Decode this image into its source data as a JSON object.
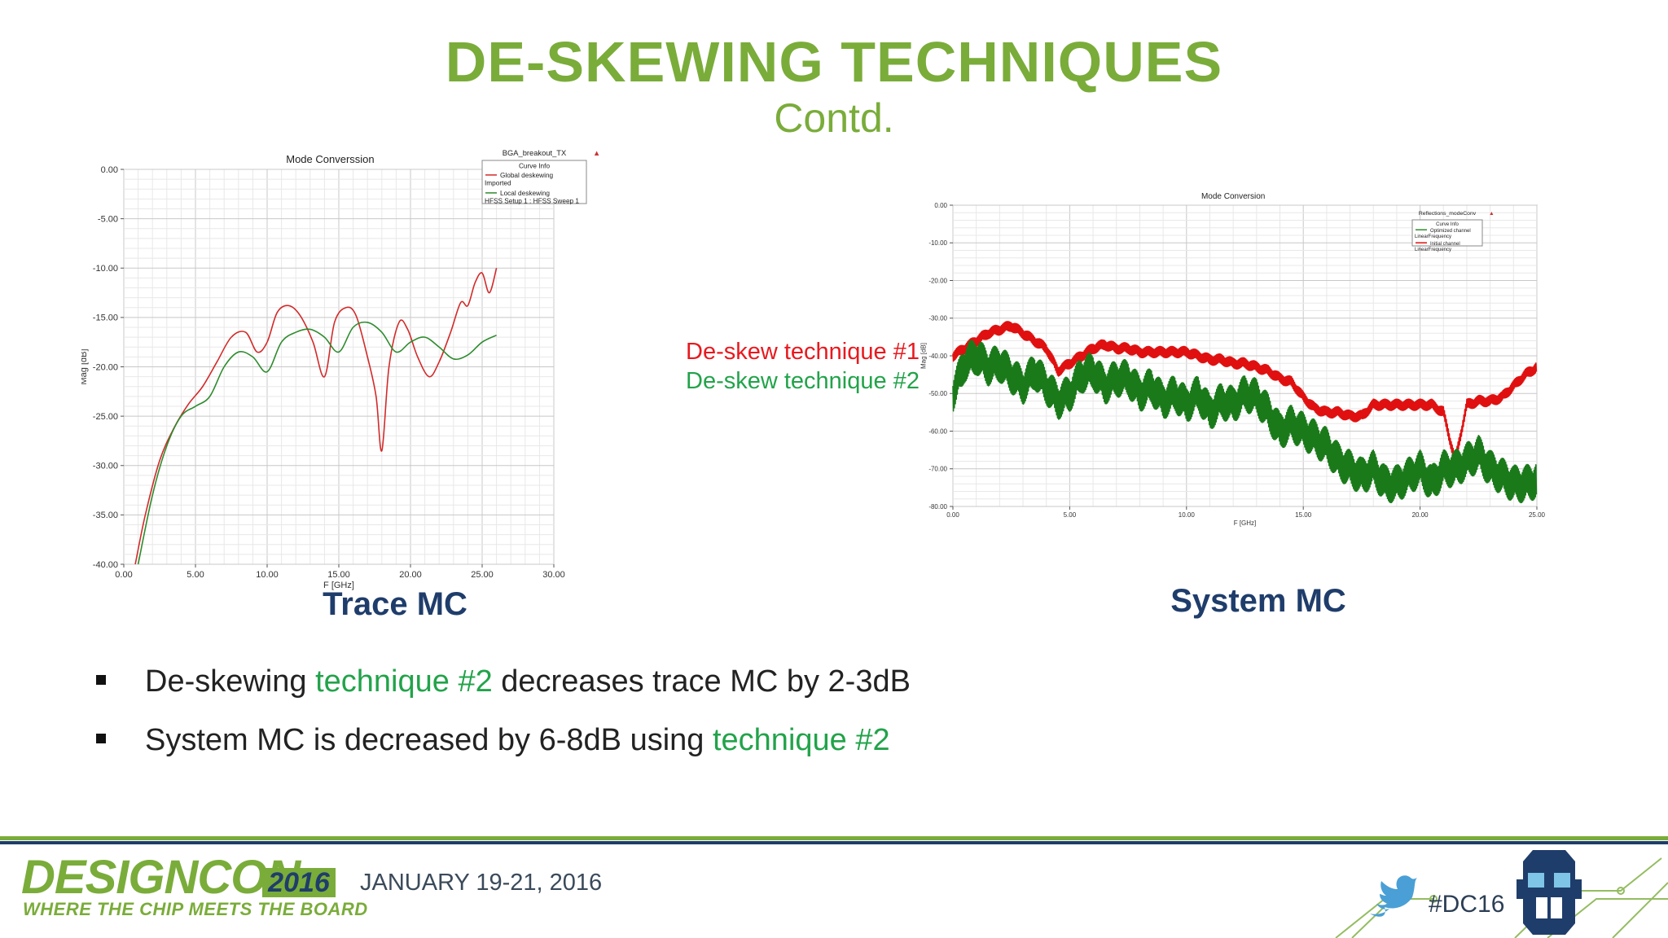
{
  "slide": {
    "title": "DE-SKEWING TECHNIQUES",
    "subtitle": "Contd."
  },
  "annotations": {
    "technique1": "De-skew technique #1",
    "technique2": "De-skew technique #2",
    "technique1_color": "#e8191e",
    "technique2_color": "#22a34a"
  },
  "captions": {
    "left": "Trace MC",
    "right": "System MC"
  },
  "bullets": [
    {
      "before": "De-skewing ",
      "highlight": "technique #2",
      "after": " decreases trace MC by 2-3dB"
    },
    {
      "before": "System MC is decreased by 6-8dB using ",
      "highlight": "technique #2",
      "after": ""
    }
  ],
  "footer": {
    "logo": "DESIGNCON",
    "year": "2016",
    "tagline": "WHERE THE CHIP MEETS THE BOARD",
    "dates": "JANUARY 19-21, 2016",
    "hashtag": "#DC16",
    "accent_green": "#7aac3a",
    "navy": "#1f3d6b"
  },
  "chart_data": [
    {
      "type": "line",
      "title": "Mode Converssion",
      "corner_label": "BGA_breakout_TX",
      "xlabel": "F [GHz]",
      "ylabel": "Mag [dB]",
      "xlim": [
        0,
        30
      ],
      "ylim": [
        -40,
        0
      ],
      "xticks": [
        "0.00",
        "5.00",
        "10.00",
        "15.00",
        "20.00",
        "25.00",
        "30.00"
      ],
      "yticks": [
        "0.00",
        "-5.00",
        "-10.00",
        "-15.00",
        "-20.00",
        "-25.00",
        "-30.00",
        "-35.00",
        "-40.00"
      ],
      "grid": true,
      "legend_position": "top-right",
      "legend_header": "Curve Info",
      "legend": [
        {
          "label": "Global deskewing",
          "sub": "Imported",
          "color": "#d32a2a"
        },
        {
          "label": "Local deskewing",
          "sub": "HFSS Setup 1 : HFSS Sweep 1",
          "color": "#2e8b2e"
        }
      ],
      "series": [
        {
          "color": "#d32a2a",
          "x": [
            0.8,
            1.5,
            2.5,
            3.5,
            4.5,
            5.5,
            6.5,
            7.5,
            8.5,
            9.3,
            10.0,
            10.7,
            11.5,
            12.3,
            13.2,
            14.0,
            14.7,
            15.5,
            16.2,
            17.0,
            17.6,
            18.0,
            18.5,
            19.2,
            19.8,
            20.5,
            21.3,
            22.0,
            22.8,
            23.5,
            24.0,
            24.5,
            25.0,
            25.5,
            26.0
          ],
          "y": [
            -40,
            -35,
            -29.5,
            -26.2,
            -23.8,
            -22.0,
            -19.5,
            -17.0,
            -16.5,
            -18.5,
            -17.5,
            -14.5,
            -13.8,
            -14.8,
            -17.5,
            -21.0,
            -15.5,
            -14.0,
            -14.8,
            -19.0,
            -23.0,
            -28.5,
            -20.0,
            -15.5,
            -16.2,
            -19.0,
            -21.0,
            -19.5,
            -16.5,
            -13.5,
            -13.8,
            -11.5,
            -10.5,
            -12.5,
            -10.0
          ]
        },
        {
          "color": "#2e8b2e",
          "x": [
            1.0,
            2.0,
            3.0,
            4.0,
            5.0,
            6.0,
            7.0,
            8.0,
            9.0,
            10.0,
            11.0,
            12.0,
            13.0,
            14.0,
            15.0,
            16.0,
            17.0,
            18.0,
            19.0,
            20.0,
            21.0,
            22.0,
            23.0,
            24.0,
            25.0,
            26.0
          ],
          "y": [
            -40,
            -33.0,
            -28.0,
            -25.0,
            -24.0,
            -23.0,
            -20.0,
            -18.5,
            -19.0,
            -20.5,
            -17.5,
            -16.5,
            -16.2,
            -17.0,
            -18.5,
            -16.0,
            -15.5,
            -16.5,
            -18.5,
            -17.5,
            -17.0,
            -18.0,
            -19.2,
            -18.8,
            -17.5,
            -16.8
          ]
        }
      ]
    },
    {
      "type": "line",
      "title": "Mode Conversion",
      "corner_label": "Reflections_modeConv",
      "xlabel": "F [GHz]",
      "ylabel": "Mag [dB]",
      "xlim": [
        0,
        25
      ],
      "ylim": [
        -80,
        0
      ],
      "xticks": [
        "0.00",
        "5.00",
        "10.00",
        "15.00",
        "20.00",
        "25.00"
      ],
      "yticks": [
        "0.00",
        "-10.00",
        "-20.00",
        "-30.00",
        "-40.00",
        "-50.00",
        "-60.00",
        "-70.00",
        "-80.00"
      ],
      "grid": true,
      "legend_position": "top-right",
      "legend_header": "Curve Info",
      "legend": [
        {
          "label": "Optimized channel",
          "sub": "LinearFrequency",
          "color": "#2e8b2e"
        },
        {
          "label": "Initial channel",
          "sub": "LinearFrequency",
          "color": "#e01010"
        }
      ],
      "series": [
        {
          "color": "#e01010",
          "width_db": 3,
          "x": [
            0.0,
            0.5,
            1.0,
            1.5,
            2.0,
            2.5,
            3.0,
            3.5,
            4.0,
            4.5,
            5.0,
            5.5,
            6.0,
            6.5,
            7.0,
            7.5,
            8.0,
            8.5,
            9.0,
            9.5,
            10.0,
            10.5,
            11.0,
            11.5,
            12.0,
            12.5,
            13.0,
            13.5,
            14.0,
            14.5,
            15.0,
            15.5,
            16.0,
            16.5,
            17.0,
            17.5,
            18.0,
            18.5,
            19.0,
            19.5,
            20.0,
            20.5,
            21.0,
            21.5,
            22.0,
            22.5,
            23.0,
            23.5,
            24.0,
            24.5,
            25.0
          ],
          "y": [
            -40,
            -38,
            -36,
            -34,
            -33,
            -32,
            -34,
            -36,
            -38,
            -44,
            -42,
            -40,
            -38,
            -37,
            -38,
            -38,
            -39,
            -39,
            -39,
            -39,
            -39,
            -40,
            -41,
            -41,
            -42,
            -42,
            -43,
            -44,
            -46,
            -47,
            -51,
            -54,
            -55,
            -55,
            -56,
            -56,
            -53,
            -53,
            -53,
            -53,
            -53,
            -53,
            -55,
            -68,
            -53,
            -52,
            -52,
            -51,
            -48,
            -45,
            -43
          ]
        },
        {
          "color": "#1a7a1a",
          "width_db": 10,
          "x": [
            0.0,
            0.5,
            1.0,
            1.5,
            2.0,
            2.5,
            3.0,
            3.5,
            4.0,
            4.5,
            5.0,
            5.5,
            6.0,
            6.5,
            7.0,
            7.5,
            8.0,
            8.5,
            9.0,
            9.5,
            10.0,
            10.5,
            11.0,
            11.5,
            12.0,
            12.5,
            13.0,
            13.5,
            14.0,
            14.5,
            15.0,
            15.5,
            16.0,
            16.5,
            17.0,
            17.5,
            18.0,
            18.5,
            19.0,
            19.5,
            20.0,
            20.5,
            21.0,
            21.5,
            22.0,
            22.5,
            23.0,
            23.5,
            24.0,
            24.5,
            25.0
          ],
          "y": [
            -50,
            -42,
            -40,
            -43,
            -42,
            -45,
            -48,
            -44,
            -48,
            -52,
            -50,
            -45,
            -44,
            -48,
            -46,
            -46,
            -50,
            -48,
            -52,
            -50,
            -53,
            -50,
            -55,
            -52,
            -53,
            -50,
            -51,
            -55,
            -60,
            -58,
            -60,
            -62,
            -64,
            -68,
            -70,
            -72,
            -70,
            -74,
            -74,
            -72,
            -70,
            -74,
            -70,
            -70,
            -68,
            -66,
            -70,
            -72,
            -74,
            -74,
            -73
          ]
        }
      ]
    }
  ]
}
